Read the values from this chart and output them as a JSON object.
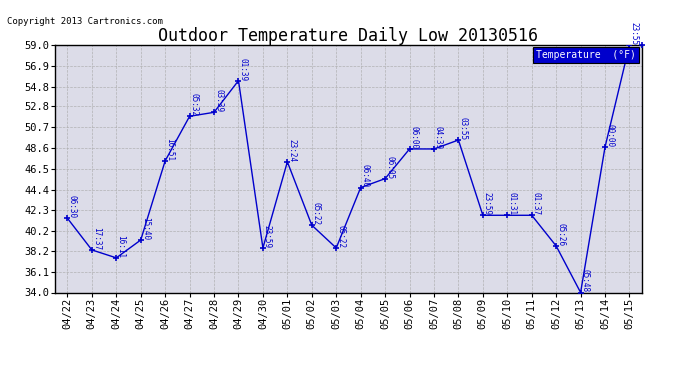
{
  "title": "Outdoor Temperature Daily Low 20130516",
  "copyright": "Copyright 2013 Cartronics.com",
  "legend_label": "Temperature  (°F)",
  "x_labels": [
    "04/22",
    "04/23",
    "04/24",
    "04/25",
    "04/26",
    "04/27",
    "04/28",
    "04/29",
    "04/30",
    "05/01",
    "05/02",
    "05/03",
    "05/04",
    "05/05",
    "05/06",
    "05/07",
    "05/08",
    "05/09",
    "05/10",
    "05/11",
    "05/12",
    "05/13",
    "05/14",
    "05/15"
  ],
  "y_values": [
    41.5,
    38.3,
    37.5,
    39.3,
    47.3,
    51.8,
    52.2,
    55.4,
    38.5,
    47.2,
    40.8,
    38.5,
    44.6,
    45.5,
    48.5,
    48.5,
    49.4,
    41.8,
    41.8,
    41.8,
    38.7,
    34.0,
    48.7,
    59.0
  ],
  "time_labels": [
    "06:30",
    "17:37",
    "16:11",
    "15:40",
    "16:51",
    "05:32",
    "03:39",
    "01:39",
    "23:59",
    "23:24",
    "05:22",
    "05:22",
    "06:40",
    "06:05",
    "06:00",
    "04:39",
    "03:55",
    "23:59",
    "01:31",
    "01:37",
    "05:26",
    "05:48",
    "00:00",
    "23:55"
  ],
  "ylim": [
    34.0,
    59.0
  ],
  "line_color": "#0000cc",
  "bg_color": "#ffffff",
  "plot_bg_color": "#dcdce8",
  "grid_color": "#aaaaaa",
  "y_ticks": [
    34.0,
    36.1,
    38.2,
    40.2,
    42.3,
    44.4,
    46.5,
    48.6,
    50.7,
    52.8,
    54.8,
    56.9,
    59.0
  ]
}
